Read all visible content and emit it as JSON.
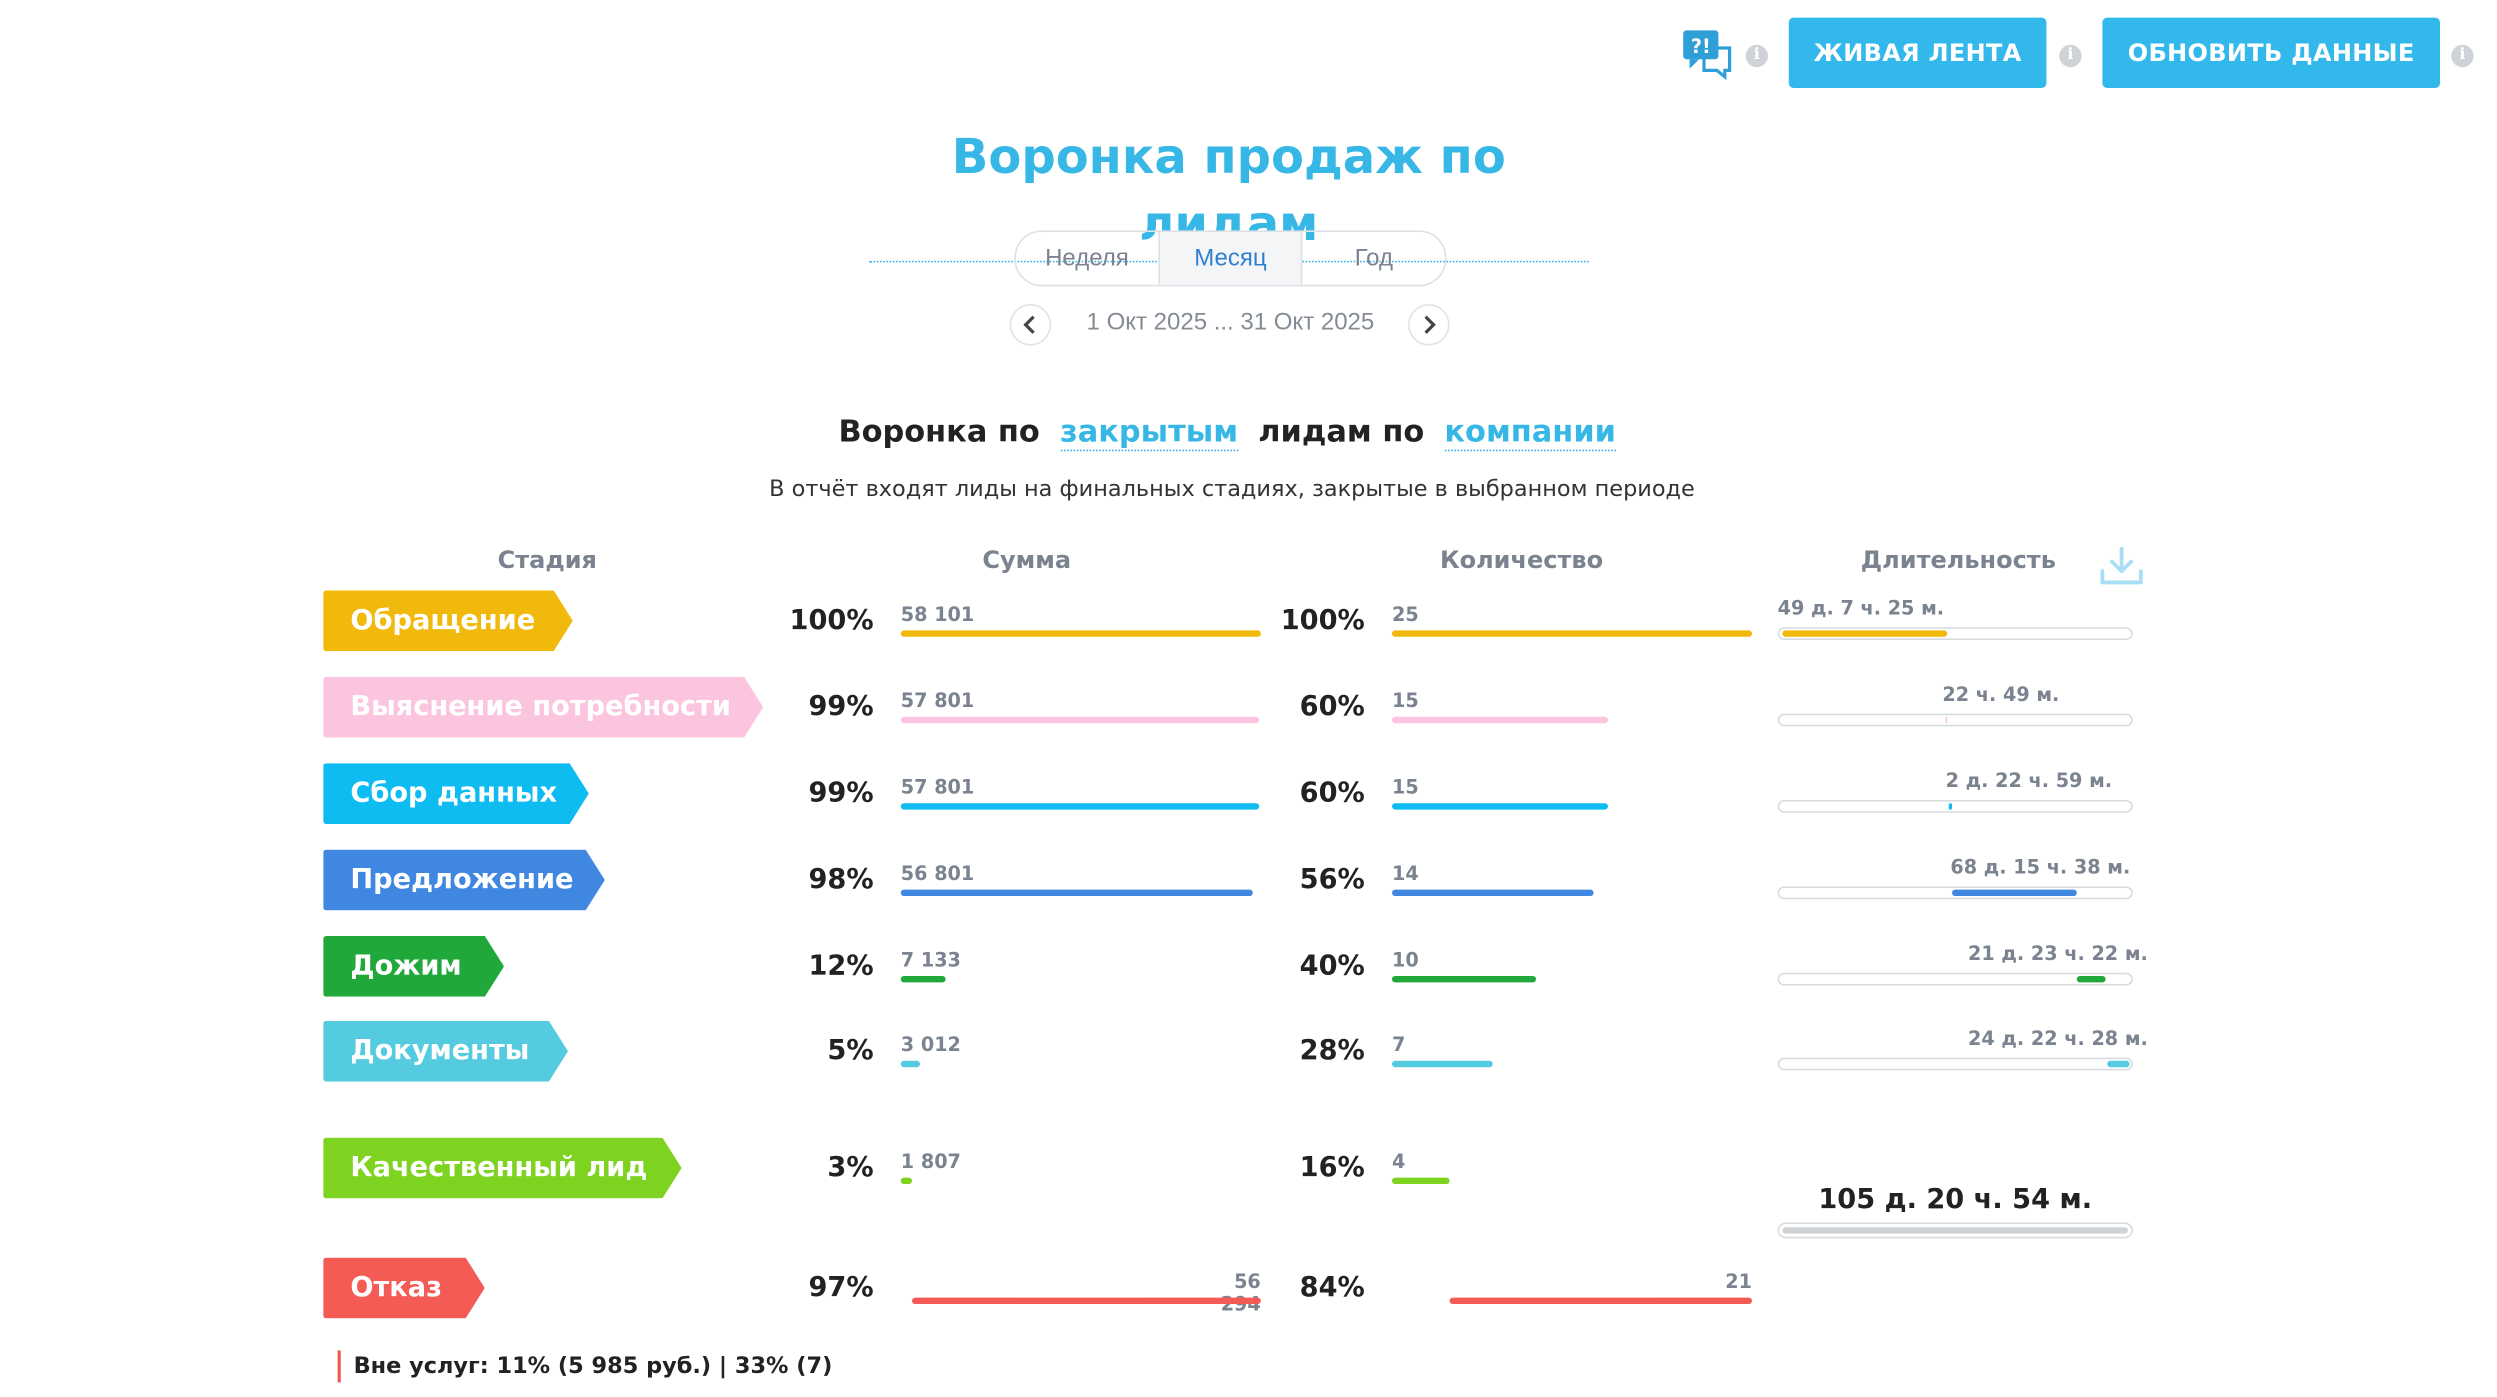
{
  "toolbar": {
    "live_feed_label": "ЖИВАЯ ЛЕНТА",
    "refresh_label": "ОБНОВИТЬ ДАННЫЕ",
    "help_icon": "help-chat-icon",
    "info_glyph": "i"
  },
  "title": "Воронка продаж по лидам",
  "period": {
    "options": [
      "Неделя",
      "Месяц",
      "Год"
    ],
    "selected": "Месяц",
    "range": "1 Окт 2025 ... 31 Окт 2025"
  },
  "funnel": {
    "heading_prefix": "Воронка по",
    "heading_filter": "закрытым",
    "heading_middle": "лидам по",
    "heading_group": "компании",
    "note": "В отчёт входят лиды на финальных стадиях, закрытые в выбранном периоде"
  },
  "columns": {
    "stage": "Стадия",
    "sum": "Сумма",
    "count": "Количество",
    "duration": "Длительность"
  },
  "stages": [
    {
      "name": "Обращение",
      "color": "#f0b90b",
      "sum_pct": "100%",
      "sum": "58 101",
      "sum_frac": 1.0,
      "count_pct": "100%",
      "count": "25",
      "count_frac": 1.0,
      "duration": "49 д. 7 ч. 25 м."
    },
    {
      "name": "Выяснение потребности",
      "color": "#fbc4df",
      "sum_pct": "99%",
      "sum": "57 801",
      "sum_frac": 0.995,
      "count_pct": "60%",
      "count": "15",
      "count_frac": 0.6,
      "duration": "22 ч. 49 м."
    },
    {
      "name": "Сбор данных",
      "color": "#0ebcf2",
      "sum_pct": "99%",
      "sum": "57 801",
      "sum_frac": 0.995,
      "count_pct": "60%",
      "count": "15",
      "count_frac": 0.6,
      "duration": "2 д. 22 ч. 59 м."
    },
    {
      "name": "Предложение",
      "color": "#3f87e0",
      "sum_pct": "98%",
      "sum": "56 801",
      "sum_frac": 0.978,
      "count_pct": "56%",
      "count": "14",
      "count_frac": 0.56,
      "duration": "68 д. 15 ч. 38 м."
    },
    {
      "name": "Дожим",
      "color": "#21a83b",
      "sum_pct": "12%",
      "sum": "7 133",
      "sum_frac": 0.123,
      "count_pct": "40%",
      "count": "10",
      "count_frac": 0.4,
      "duration": "21 д. 23 ч. 22 м."
    },
    {
      "name": "Документы",
      "color": "#55cbe0",
      "sum_pct": "5%",
      "sum": "3 012",
      "sum_frac": 0.052,
      "count_pct": "28%",
      "count": "7",
      "count_frac": 0.28,
      "duration": "24 д. 22 ч. 28 м."
    }
  ],
  "qualified": {
    "name": "Качественный лид",
    "color": "#7ed321",
    "sum_pct": "3%",
    "sum": "1 807",
    "sum_frac": 0.031,
    "count_pct": "16%",
    "count": "4",
    "count_frac": 0.16
  },
  "rejected": {
    "name": "Отказ",
    "color": "#f45b55",
    "sum_pct": "97%",
    "sum": "56 294",
    "sum_frac": 0.969,
    "count_pct": "84%",
    "count": "21",
    "count_frac": 0.84
  },
  "total_duration": "105 д. 20 ч. 54 м.",
  "footer_note": "Вне услуг: 11% (5 985 руб.) | 33% (7)"
}
